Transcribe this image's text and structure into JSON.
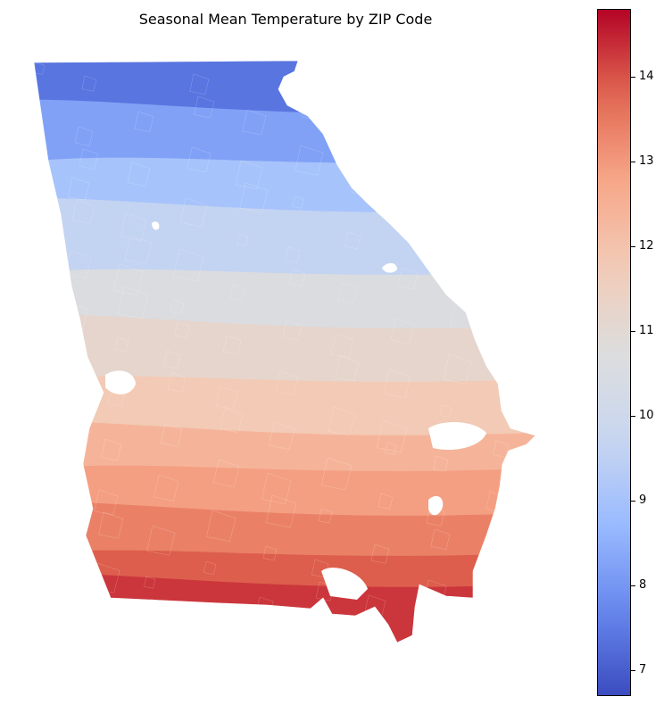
{
  "title": "Seasonal Mean Temperature by ZIP Code",
  "colormap": {
    "name": "coolwarm",
    "stops": [
      "#3b4cc0",
      "#6788ee",
      "#9abbff",
      "#c9d7f0",
      "#dddddd",
      "#f2cbb7",
      "#f7a789",
      "#e26952",
      "#b40426"
    ]
  },
  "colorbar": {
    "min": 6.7,
    "max": 14.8,
    "ticks": [
      "7",
      "8",
      "9",
      "10",
      "11",
      "12",
      "13",
      "14"
    ]
  },
  "region": "Georgia",
  "bands": [
    {
      "value": 7.4
    },
    {
      "value": 8.2
    },
    {
      "value": 9.0
    },
    {
      "value": 9.6
    },
    {
      "value": 10.6
    },
    {
      "value": 11.2
    },
    {
      "value": 11.8
    },
    {
      "value": 12.4
    },
    {
      "value": 12.9
    },
    {
      "value": 13.4
    },
    {
      "value": 13.9
    },
    {
      "value": 14.3
    }
  ]
}
